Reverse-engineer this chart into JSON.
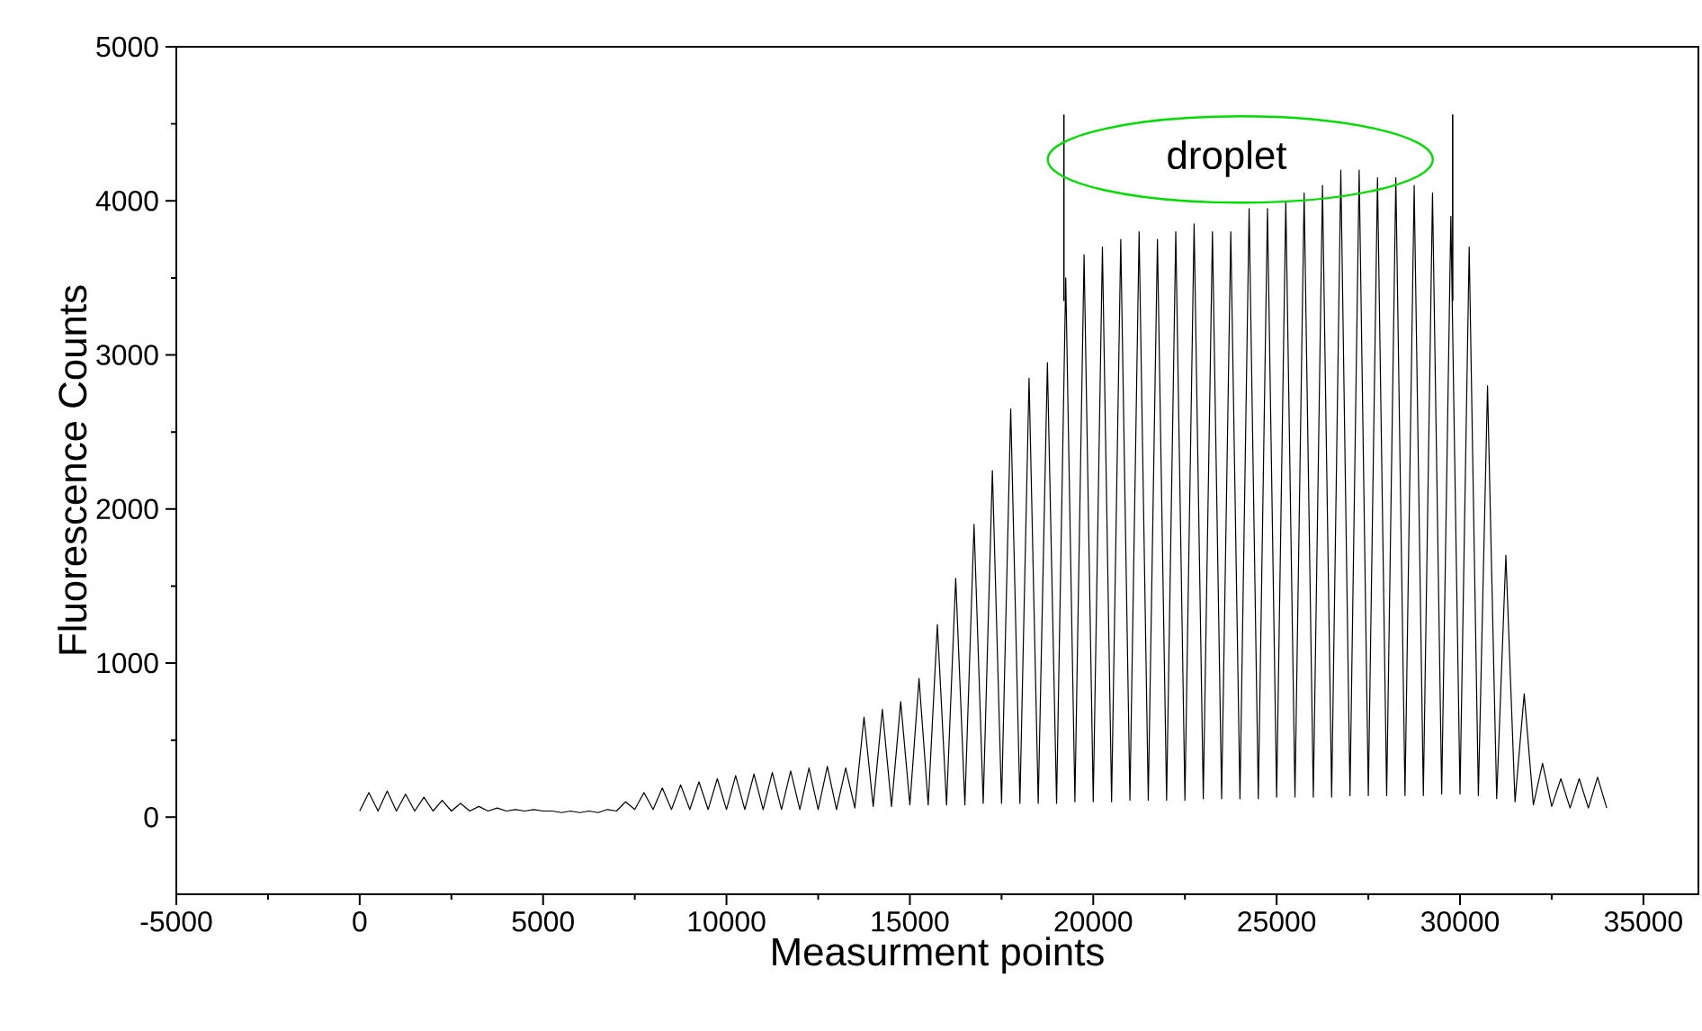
{
  "chart_data": {
    "type": "line",
    "xlabel": "Measurment points",
    "ylabel": "Fluorescence Counts",
    "xlim": [
      -5000,
      36500
    ],
    "ylim": [
      -500,
      5000
    ],
    "xticks": [
      -5000,
      0,
      5000,
      10000,
      15000,
      20000,
      25000,
      30000,
      35000
    ],
    "yticks": [
      0,
      1000,
      2000,
      3000,
      4000,
      5000
    ],
    "marker": "none",
    "line_style": "solid",
    "annotations": [
      "droplet"
    ],
    "ref_lines": [
      {
        "axis": "x",
        "value": 19200,
        "color": "#000000"
      },
      {
        "axis": "x",
        "value": 29800,
        "color": "#000000"
      }
    ],
    "series": [
      {
        "color": "#000000",
        "x": [
          0,
          250,
          500,
          750,
          1000,
          1250,
          1500,
          1750,
          2000,
          2250,
          2500,
          2750,
          3000,
          3250,
          3500,
          3750,
          4000,
          4250,
          4500,
          4750,
          5000,
          5250,
          5500,
          5750,
          6000,
          6250,
          6500,
          6750,
          7000,
          7250,
          7500,
          7750,
          8000,
          8250,
          8500,
          8750,
          9000,
          9250,
          9500,
          9750,
          10000,
          10250,
          10500,
          10750,
          11000,
          11250,
          11500,
          11750,
          12000,
          12250,
          12500,
          12750,
          13000,
          13250,
          13500,
          13750,
          14000,
          14250,
          14500,
          14750,
          15000,
          15250,
          15500,
          15750,
          16000,
          16250,
          16500,
          16750,
          17000,
          17250,
          17500,
          17750,
          18000,
          18250,
          18500,
          18750,
          19000,
          19250,
          19500,
          19750,
          20000,
          20250,
          20500,
          20750,
          21000,
          21250,
          21500,
          21750,
          22000,
          22250,
          22500,
          22750,
          23000,
          23250,
          23500,
          23750,
          24000,
          24250,
          24500,
          24750,
          25000,
          25250,
          25500,
          25750,
          26000,
          26250,
          26500,
          26750,
          27000,
          27250,
          27500,
          27750,
          28000,
          28250,
          28500,
          28750,
          29000,
          29250,
          29500,
          29750,
          30000,
          30250,
          30500,
          30750,
          31000,
          31250,
          31500,
          31750,
          32000,
          32250,
          32500,
          32750,
          33000,
          33250,
          33500,
          33750,
          34000
        ],
        "values": [
          40,
          160,
          40,
          170,
          40,
          150,
          40,
          130,
          40,
          110,
          40,
          90,
          40,
          70,
          40,
          60,
          40,
          50,
          40,
          50,
          40,
          40,
          30,
          40,
          30,
          40,
          30,
          50,
          40,
          100,
          50,
          160,
          50,
          190,
          50,
          210,
          50,
          230,
          50,
          250,
          50,
          270,
          50,
          280,
          50,
          290,
          50,
          300,
          50,
          320,
          50,
          330,
          50,
          320,
          60,
          650,
          70,
          700,
          70,
          750,
          80,
          900,
          80,
          1250,
          80,
          1550,
          80,
          1900,
          90,
          2250,
          90,
          2650,
          90,
          2850,
          90,
          2950,
          90,
          3500,
          100,
          3650,
          100,
          3700,
          100,
          3750,
          110,
          3800,
          110,
          3750,
          110,
          3800,
          110,
          3850,
          120,
          3800,
          120,
          3800,
          120,
          3950,
          120,
          3950,
          130,
          4000,
          130,
          4050,
          130,
          4100,
          130,
          4200,
          140,
          4200,
          140,
          4150,
          140,
          4150,
          140,
          4100,
          140,
          4050,
          150,
          3900,
          150,
          3700,
          140,
          2800,
          120,
          1700,
          100,
          800,
          80,
          350,
          70,
          250,
          60,
          250,
          60,
          260,
          60
        ]
      }
    ]
  }
}
